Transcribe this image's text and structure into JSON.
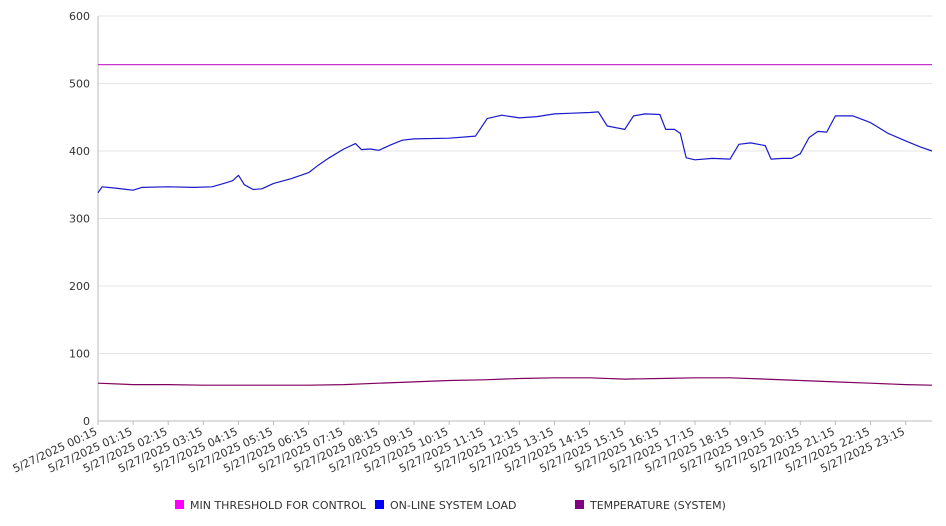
{
  "chart_data": {
    "type": "line",
    "title": "",
    "xlabel": "",
    "ylabel": "",
    "ylim": [
      0,
      600
    ],
    "y_ticks": [
      0,
      100,
      200,
      300,
      400,
      500,
      600
    ],
    "grid": true,
    "legend_position": "bottom",
    "x_tick_labels": [
      "5/27/2025 00:15",
      "5/27/2025 01:15",
      "5/27/2025 02:15",
      "5/27/2025 03:15",
      "5/27/2025 04:15",
      "5/27/2025 05:15",
      "5/27/2025 06:15",
      "5/27/2025 07:15",
      "5/27/2025 08:15",
      "5/27/2025 09:15",
      "5/27/2025 10:15",
      "5/27/2025 11:15",
      "5/27/2025 12:15",
      "5/27/2025 13:15",
      "5/27/2025 14:15",
      "5/27/2025 15:15",
      "5/27/2025 16:15",
      "5/27/2025 17:15",
      "5/27/2025 18:15",
      "5/27/2025 19:15",
      "5/27/2025 20:15",
      "5/27/2025 21:15",
      "5/27/2025 22:15",
      "5/27/2025 23:15"
    ],
    "x_range": [
      "5/27/2025 00:15",
      "5/28/2025 00:00"
    ],
    "series": [
      {
        "name": "MIN THRESHOLD FOR CONTROL",
        "color": "#cc33cc",
        "legend_color": "#ff00ff",
        "points": [
          [
            "5/27/2025 00:15",
            528
          ],
          [
            "5/28/2025 00:00",
            528
          ]
        ]
      },
      {
        "name": "ON-LINE SYSTEM LOAD",
        "color": "#1a1acc",
        "legend_color": "#0000ff",
        "points": [
          [
            "5/27/2025 00:15",
            338
          ],
          [
            "5/27/2025 00:22",
            347
          ],
          [
            "5/27/2025 00:45",
            345
          ],
          [
            "5/27/2025 01:15",
            342
          ],
          [
            "5/27/2025 01:30",
            346
          ],
          [
            "5/27/2025 02:15",
            347
          ],
          [
            "5/27/2025 03:00",
            346
          ],
          [
            "5/27/2025 03:30",
            347
          ],
          [
            "5/27/2025 03:50",
            352
          ],
          [
            "5/27/2025 04:05",
            356
          ],
          [
            "5/27/2025 04:15",
            364
          ],
          [
            "5/27/2025 04:25",
            350
          ],
          [
            "5/27/2025 04:40",
            343
          ],
          [
            "5/27/2025 04:55",
            344
          ],
          [
            "5/27/2025 05:15",
            352
          ],
          [
            "5/27/2025 05:45",
            359
          ],
          [
            "5/27/2025 06:15",
            368
          ],
          [
            "5/27/2025 06:30",
            378
          ],
          [
            "5/27/2025 06:50",
            390
          ],
          [
            "5/27/2025 07:15",
            403
          ],
          [
            "5/27/2025 07:35",
            411
          ],
          [
            "5/27/2025 07:45",
            402
          ],
          [
            "5/27/2025 08:00",
            403
          ],
          [
            "5/27/2025 08:15",
            401
          ],
          [
            "5/27/2025 08:35",
            409
          ],
          [
            "5/27/2025 08:55",
            416
          ],
          [
            "5/27/2025 09:15",
            418
          ],
          [
            "5/27/2025 10:15",
            419
          ],
          [
            "5/27/2025 11:00",
            422
          ],
          [
            "5/27/2025 11:20",
            448
          ],
          [
            "5/27/2025 11:45",
            453
          ],
          [
            "5/27/2025 12:15",
            449
          ],
          [
            "5/27/2025 12:45",
            451
          ],
          [
            "5/27/2025 13:15",
            455
          ],
          [
            "5/27/2025 13:45",
            456
          ],
          [
            "5/27/2025 14:15",
            457
          ],
          [
            "5/27/2025 14:30",
            458
          ],
          [
            "5/27/2025 14:45",
            437
          ],
          [
            "5/27/2025 15:15",
            432
          ],
          [
            "5/27/2025 15:30",
            452
          ],
          [
            "5/27/2025 15:50",
            455
          ],
          [
            "5/27/2025 16:15",
            454
          ],
          [
            "5/27/2025 16:25",
            432
          ],
          [
            "5/27/2025 16:40",
            432
          ],
          [
            "5/27/2025 16:50",
            426
          ],
          [
            "5/27/2025 17:00",
            390
          ],
          [
            "5/27/2025 17:15",
            387
          ],
          [
            "5/27/2025 17:45",
            389
          ],
          [
            "5/27/2025 18:15",
            388
          ],
          [
            "5/27/2025 18:30",
            410
          ],
          [
            "5/27/2025 18:50",
            412
          ],
          [
            "5/27/2025 19:15",
            408
          ],
          [
            "5/27/2025 19:25",
            388
          ],
          [
            "5/27/2025 19:45",
            389
          ],
          [
            "5/27/2025 20:00",
            389
          ],
          [
            "5/27/2025 20:15",
            396
          ],
          [
            "5/27/2025 20:30",
            420
          ],
          [
            "5/27/2025 20:45",
            429
          ],
          [
            "5/27/2025 21:00",
            428
          ],
          [
            "5/27/2025 21:15",
            452
          ],
          [
            "5/27/2025 21:45",
            452
          ],
          [
            "5/27/2025 22:15",
            442
          ],
          [
            "5/27/2025 22:45",
            426
          ],
          [
            "5/27/2025 23:15",
            415
          ],
          [
            "5/27/2025 23:40",
            406
          ],
          [
            "5/28/2025 00:00",
            400
          ]
        ]
      },
      {
        "name": "TEMPERATURE (SYSTEM)",
        "color": "#800060",
        "legend_color": "#800080",
        "points": [
          [
            "5/27/2025 00:15",
            56
          ],
          [
            "5/27/2025 01:15",
            54
          ],
          [
            "5/27/2025 02:15",
            54
          ],
          [
            "5/27/2025 03:15",
            53
          ],
          [
            "5/27/2025 04:15",
            53
          ],
          [
            "5/27/2025 05:15",
            53
          ],
          [
            "5/27/2025 06:15",
            53
          ],
          [
            "5/27/2025 07:15",
            54
          ],
          [
            "5/27/2025 08:15",
            56
          ],
          [
            "5/27/2025 09:15",
            58
          ],
          [
            "5/27/2025 10:15",
            60
          ],
          [
            "5/27/2025 11:15",
            61
          ],
          [
            "5/27/2025 12:15",
            63
          ],
          [
            "5/27/2025 13:15",
            64
          ],
          [
            "5/27/2025 14:15",
            64
          ],
          [
            "5/27/2025 15:15",
            62
          ],
          [
            "5/27/2025 16:15",
            63
          ],
          [
            "5/27/2025 17:15",
            64
          ],
          [
            "5/27/2025 18:15",
            64
          ],
          [
            "5/27/2025 19:15",
            62
          ],
          [
            "5/27/2025 20:15",
            60
          ],
          [
            "5/27/2025 21:15",
            58
          ],
          [
            "5/27/2025 22:15",
            56
          ],
          [
            "5/27/2025 23:15",
            54
          ],
          [
            "5/28/2025 00:00",
            53
          ]
        ]
      }
    ]
  }
}
